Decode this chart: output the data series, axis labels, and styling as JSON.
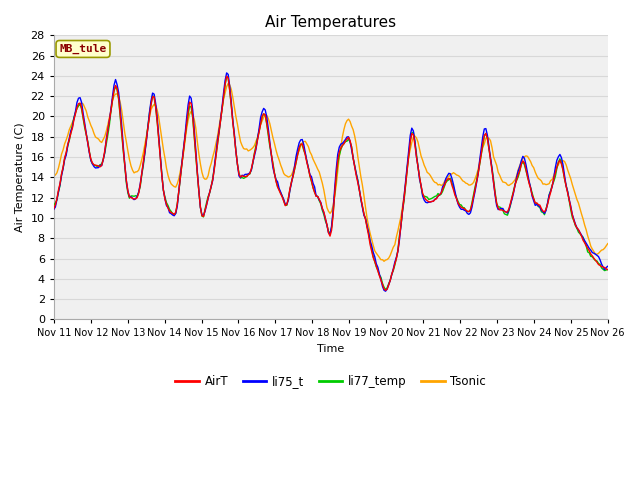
{
  "title": "Air Temperatures",
  "ylabel": "Air Temperature (C)",
  "xlabel": "Time",
  "annotation": "MB_tule",
  "annotation_color": "#8B0000",
  "annotation_bg": "#FFFFCC",
  "annotation_border": "#999900",
  "legend_labels": [
    "AirT",
    "li75_t",
    "li77_temp",
    "Tsonic"
  ],
  "legend_colors": [
    "#FF0000",
    "#0000FF",
    "#00CC00",
    "#FFA500"
  ],
  "ylim": [
    0,
    28
  ],
  "yticks": [
    0,
    2,
    4,
    6,
    8,
    10,
    12,
    14,
    16,
    18,
    20,
    22,
    24,
    26,
    28
  ],
  "xtick_labels": [
    "Nov 11",
    "Nov 12",
    "Nov 13",
    "Nov 14",
    "Nov 15",
    "Nov 16",
    "Nov 17",
    "Nov 18",
    "Nov 19",
    "Nov 20",
    "Nov 21",
    "Nov 22",
    "Nov 23",
    "Nov 24",
    "Nov 25",
    "Nov 26"
  ],
  "grid_color": "#D8D8D8",
  "bg_color": "#F0F0F0",
  "line_width": 1.0,
  "figwidth": 6.4,
  "figheight": 4.8,
  "dpi": 100
}
